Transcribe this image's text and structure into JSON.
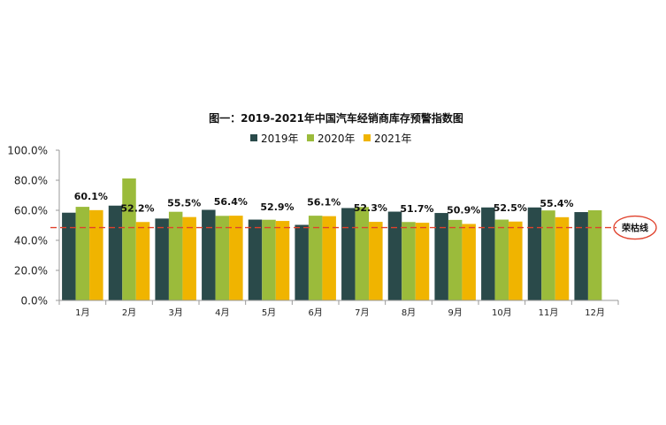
{
  "chart_data": {
    "type": "bar",
    "title": "图一：2019-2021年中国汽车经销商库存预警指数图",
    "categories": [
      "1月",
      "2月",
      "3月",
      "4月",
      "5月",
      "6月",
      "7月",
      "8月",
      "9月",
      "10月",
      "11月",
      "12月"
    ],
    "series": [
      {
        "name": "2019年",
        "color": "#2a4a4a",
        "values": [
          58.4,
          63.1,
          54.5,
          60.3,
          53.8,
          50.3,
          61.5,
          59.1,
          58.2,
          61.9,
          61.9,
          58.8
        ]
      },
      {
        "name": "2020年",
        "color": "#9bbb3b",
        "values": [
          62.3,
          81.2,
          59.0,
          56.3,
          53.7,
          56.4,
          62.2,
          52.2,
          53.6,
          53.8,
          59.9,
          60.0
        ]
      },
      {
        "name": "2021年",
        "color": "#f0b400",
        "values": [
          60.1,
          52.2,
          55.5,
          56.4,
          52.9,
          56.1,
          52.3,
          51.7,
          50.9,
          52.5,
          55.4,
          null
        ]
      }
    ],
    "data_labels": [
      "60.1%",
      "52.2%",
      "55.5%",
      "56.4%",
      "52.9%",
      "56.1%",
      "52.3%",
      "51.7%",
      "50.9%",
      "52.5%",
      "55.4%",
      ""
    ],
    "y_ticks": [
      "0.0%",
      "20.0%",
      "40.0%",
      "60.0%",
      "80.0%",
      "100.0%"
    ],
    "ylim": [
      0,
      100
    ],
    "xlabel": "",
    "ylabel": "",
    "legend_position": "top",
    "reference_line": {
      "value": 48.5,
      "label": "荣枯线",
      "color": "#e0412c"
    },
    "grid": false
  }
}
